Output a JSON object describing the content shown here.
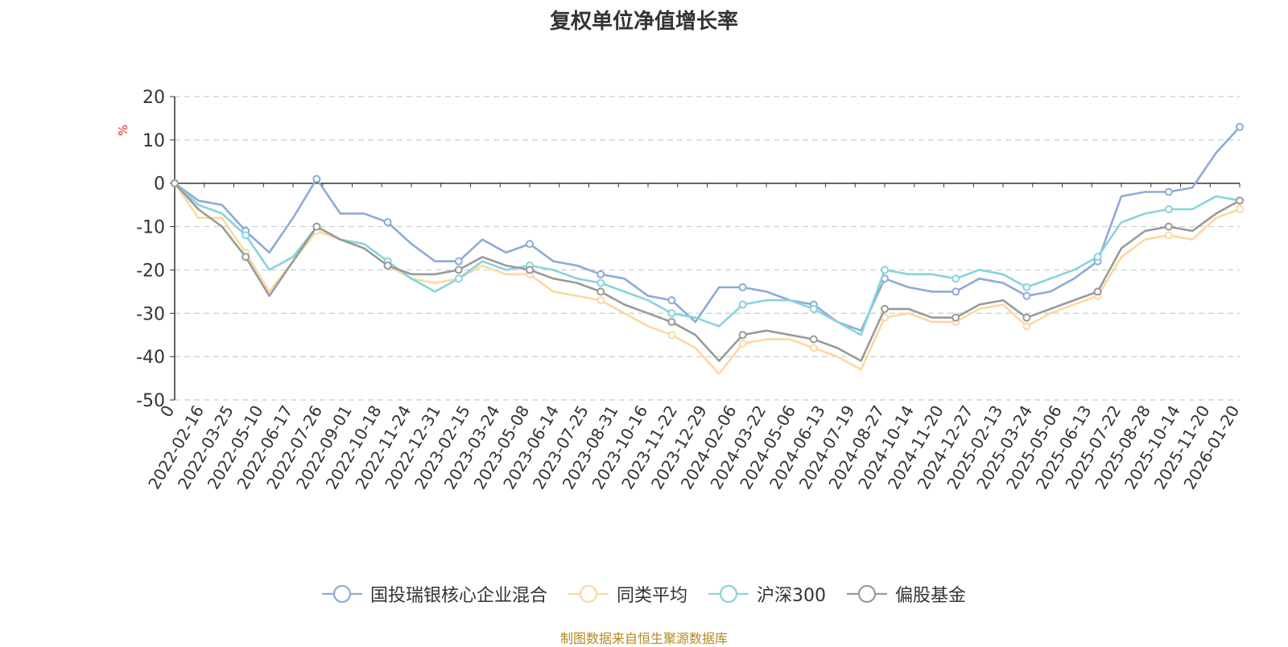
{
  "chart_data": {
    "type": "line",
    "title": "复权单位净值增长率",
    "ylabel": "%",
    "xlabel": "",
    "ylim": [
      -50,
      20
    ],
    "yticks": [
      20,
      10,
      0,
      -10,
      -20,
      -30,
      -40,
      -50
    ],
    "grid": true,
    "legend_position": "bottom",
    "x_tick_labels": [
      "0",
      "2022-02-16",
      "2022-03-25",
      "2022-05-10",
      "2022-06-17",
      "2022-07-26",
      "2022-09-01",
      "2022-10-18",
      "2022-11-24",
      "2022-12-31",
      "2023-02-15",
      "2023-03-24",
      "2023-05-08",
      "2023-06-14",
      "2023-07-25",
      "2023-08-31",
      "2023-10-16",
      "2023-11-22",
      "2023-12-29",
      "2024-02-06",
      "2024-03-22",
      "2024-05-06",
      "2024-06-13",
      "2024-07-19",
      "2024-08-27",
      "2024-10-14",
      "2024-11-20",
      "2024-12-27",
      "2025-02-13",
      "2025-03-24",
      "2025-05-06",
      "2025-06-13",
      "2025-07-22",
      "2025-08-28",
      "2025-10-14",
      "2025-11-20",
      "2026-01-20"
    ],
    "series": [
      {
        "name": "国投瑞银核心企业混合",
        "color": "#8eaad8",
        "values": [
          0,
          -4,
          -5,
          -11,
          -16,
          -8,
          1,
          -7,
          -7,
          -9,
          -14,
          -18,
          -18,
          -13,
          -16,
          -14,
          -18,
          -19,
          -21,
          -22,
          -26,
          -27,
          -32,
          -24,
          -24,
          -25,
          -27,
          -28,
          -32,
          -34,
          -22,
          -24,
          -25,
          -25,
          -22,
          -23,
          -26,
          -25,
          -22,
          -18,
          -3,
          -2,
          -2,
          -1,
          7,
          13
        ]
      },
      {
        "name": "同类平均",
        "color": "#fdd8a0",
        "values": [
          0,
          -8,
          -8,
          -16,
          -25,
          -18,
          -11,
          -13,
          -15,
          -19,
          -22,
          -23,
          -22,
          -19,
          -21,
          -21,
          -25,
          -26,
          -27,
          -30,
          -33,
          -35,
          -38,
          -44,
          -37,
          -36,
          -36,
          -38,
          -40,
          -43,
          -31,
          -30,
          -32,
          -32,
          -29,
          -28,
          -33,
          -30,
          -28,
          -26,
          -17,
          -13,
          -12,
          -13,
          -8,
          -6
        ]
      },
      {
        "name": "沪深300",
        "color": "#86d4dc",
        "values": [
          0,
          -5,
          -7,
          -12,
          -20,
          -17,
          -10,
          -13,
          -14,
          -18,
          -22,
          -25,
          -22,
          -18,
          -20,
          -19,
          -20,
          -22,
          -23,
          -25,
          -27,
          -30,
          -31,
          -33,
          -28,
          -27,
          -27,
          -29,
          -32,
          -35,
          -20,
          -21,
          -21,
          -22,
          -20,
          -21,
          -24,
          -22,
          -20,
          -17,
          -9,
          -7,
          -6,
          -6,
          -3,
          -4
        ]
      },
      {
        "name": "偏股基金",
        "color": "#9a9a9a",
        "values": [
          0,
          -6,
          -10,
          -17,
          -26,
          -18,
          -10,
          -13,
          -15,
          -19,
          -21,
          -21,
          -20,
          -17,
          -19,
          -20,
          -22,
          -23,
          -25,
          -28,
          -30,
          -32,
          -35,
          -41,
          -35,
          -34,
          -35,
          -36,
          -38,
          -41,
          -29,
          -29,
          -31,
          -31,
          -28,
          -27,
          -31,
          -29,
          -27,
          -25,
          -15,
          -11,
          -10,
          -11,
          -7,
          -4
        ]
      }
    ]
  },
  "source_text": "制图数据来自恒生聚源数据库"
}
